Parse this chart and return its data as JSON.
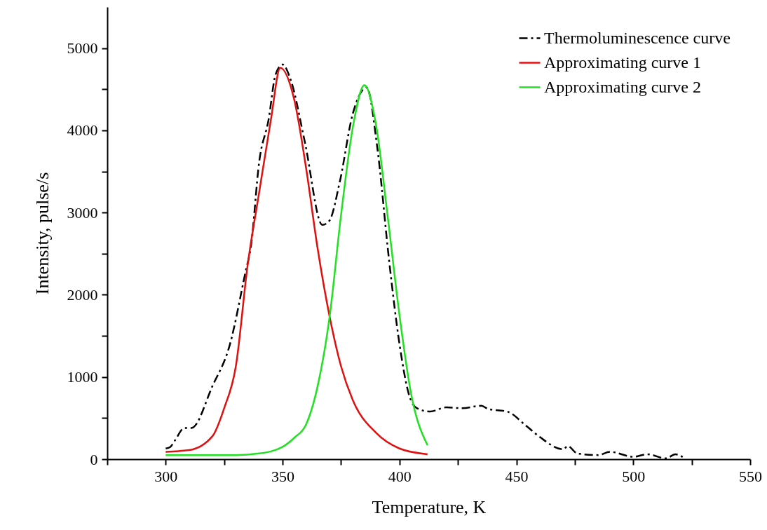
{
  "chart_data": {
    "type": "line",
    "xlabel": "Temperature, K",
    "ylabel": "Intensity, pulse/s",
    "xlim": [
      275,
      550
    ],
    "xticks": [
      {
        "value": 275,
        "label": null
      },
      300,
      {
        "value": 325,
        "label": null
      },
      350,
      {
        "value": 375,
        "label": null
      },
      400,
      {
        "value": 425,
        "label": null
      },
      450,
      {
        "value": 475,
        "label": null
      },
      500,
      {
        "value": 525,
        "label": null
      },
      550
    ],
    "ylim": [
      0,
      5500
    ],
    "yticks": [
      0,
      {
        "value": 500,
        "label": null
      },
      1000,
      {
        "value": 1500,
        "label": null
      },
      2000,
      {
        "value": 2500,
        "label": null
      },
      3000,
      {
        "value": 3500,
        "label": null
      },
      4000,
      {
        "value": 4500,
        "label": null
      },
      5000
    ],
    "grid": false,
    "legend": "top right",
    "series": [
      {
        "name": "Thermoluminescence curve",
        "color": "#000000",
        "line_style": "dashdot",
        "x": [
          300,
          302,
          304,
          308,
          311,
          320,
          327.5,
          334,
          336.5,
          340,
          344,
          347,
          350,
          353.5,
          359.5,
          367,
          370,
          374.5,
          380,
          386,
          390.5,
          395.5,
          400,
          404,
          407.5,
          413,
          420,
          427,
          435,
          438,
          446,
          454,
          460,
          470,
          472,
          476,
          485,
          490,
          500,
          506,
          514,
          518,
          522
        ],
        "values": [
          130,
          150,
          230,
          380,
          380,
          890,
          1400,
          2260,
          2600,
          3620,
          4130,
          4680,
          4800,
          4610,
          3860,
          2850,
          2900,
          3380,
          4200,
          4520,
          3790,
          2430,
          1400,
          790,
          620,
          580,
          630,
          620,
          650,
          610,
          580,
          410,
          270,
          120,
          160,
          70,
          50,
          90,
          30,
          60,
          10,
          60,
          10
        ]
      },
      {
        "name": "Approximating curve 1",
        "color": "#e01010",
        "line_style": "solid",
        "x": [
          300,
          310,
          320,
          325,
          330,
          335,
          340,
          345,
          349,
          355,
          360,
          365,
          370,
          375,
          380,
          390,
          400,
          412
        ],
        "values": [
          90,
          110,
          280,
          620,
          1130,
          2350,
          3250,
          4130,
          4760,
          4370,
          3550,
          2560,
          1750,
          1130,
          720,
          320,
          130,
          60
        ]
      },
      {
        "name": "Approximating curve 2",
        "color": "#22e022",
        "line_style": "solid",
        "x": [
          300,
          330,
          340,
          350,
          355,
          360,
          365,
          370,
          375,
          380,
          385,
          390,
          395,
          400,
          405,
          412
        ],
        "values": [
          50,
          50,
          70,
          150,
          260,
          420,
          890,
          1710,
          2970,
          4030,
          4550,
          4060,
          2940,
          1750,
          790,
          170
        ]
      }
    ]
  }
}
